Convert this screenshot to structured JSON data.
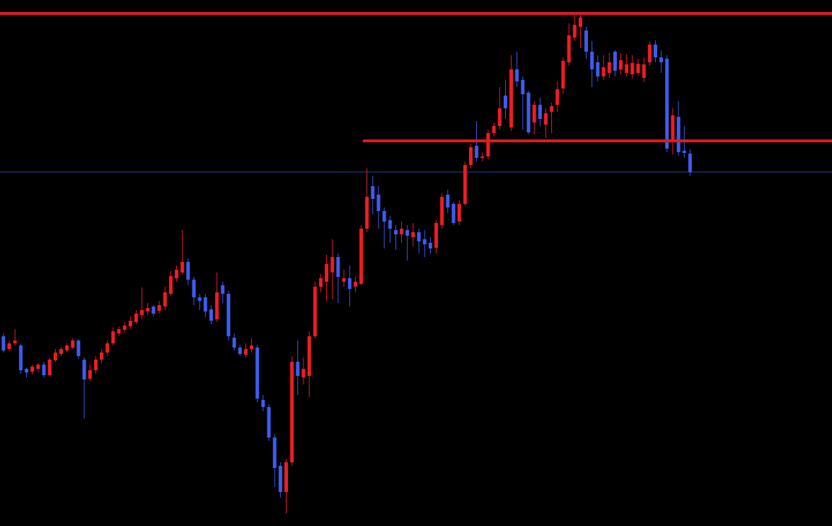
{
  "chart_data": {
    "type": "candlestick",
    "up_color": "#ee1c25",
    "down_color": "#3d5cf0",
    "xlim": [
      -0.6,
      143.6
    ],
    "ylim": [
      0,
      743
    ],
    "open": [
      268,
      250,
      258,
      255,
      222,
      218,
      222,
      228,
      213,
      234,
      243,
      248,
      252,
      262,
      235,
      208,
      220,
      235,
      245,
      258,
      272,
      277,
      282,
      288,
      298,
      303,
      310,
      304,
      310,
      328,
      350,
      358,
      373,
      348,
      323,
      323,
      306,
      292,
      340,
      328,
      266,
      252,
      242,
      250,
      252,
      178,
      168,
      125,
      85,
      48,
      90,
      232,
      210,
      212,
      268,
      338,
      345,
      358,
      380,
      345,
      350,
      338,
      342,
      420,
      480,
      468,
      445,
      432,
      418,
      412,
      418,
      408,
      415,
      405,
      400,
      393,
      425,
      468,
      455,
      430,
      455,
      510,
      537,
      520,
      522,
      555,
      565,
      608,
      563,
      645,
      630,
      612,
      570,
      595,
      567,
      585,
      595,
      618,
      655,
      690,
      705,
      700,
      670,
      655,
      635,
      640,
      670,
      645,
      640,
      638,
      640,
      633,
      655,
      680,
      662,
      660,
      545,
      578,
      530,
      526
    ],
    "high": [
      272,
      262,
      278,
      258,
      224,
      228,
      230,
      232,
      238,
      250,
      253,
      258,
      265,
      264,
      238,
      228,
      240,
      250,
      262,
      280,
      282,
      288,
      296,
      305,
      337,
      315,
      312,
      318,
      338,
      360,
      368,
      418,
      378,
      352,
      328,
      328,
      312,
      358,
      345,
      332,
      272,
      256,
      258,
      265,
      256,
      185,
      172,
      130,
      90,
      95,
      240,
      262,
      238,
      275,
      345,
      356,
      383,
      405,
      385,
      362,
      368,
      352,
      425,
      505,
      495,
      480,
      450,
      438,
      425,
      430,
      425,
      428,
      420,
      418,
      408,
      432,
      470,
      475,
      458,
      460,
      515,
      540,
      572,
      528,
      560,
      570,
      620,
      630,
      665,
      670,
      635,
      615,
      600,
      605,
      590,
      598,
      628,
      662,
      710,
      722,
      723,
      705,
      685,
      665,
      665,
      668,
      672,
      668,
      666,
      665,
      660,
      662,
      685,
      686,
      672,
      665,
      590,
      600,
      565,
      532
    ],
    "low": [
      245,
      247,
      255,
      215,
      210,
      214,
      218,
      210,
      212,
      232,
      240,
      245,
      250,
      236,
      152,
      205,
      215,
      230,
      240,
      255,
      268,
      273,
      278,
      285,
      292,
      298,
      296,
      300,
      305,
      325,
      345,
      355,
      340,
      312,
      305,
      295,
      285,
      288,
      315,
      262,
      248,
      240,
      238,
      245,
      175,
      162,
      120,
      55,
      40,
      18,
      85,
      185,
      200,
      182,
      265,
      330,
      318,
      320,
      315,
      338,
      310,
      330,
      340,
      415,
      440,
      420,
      392,
      400,
      390,
      400,
      375,
      395,
      385,
      380,
      385,
      385,
      420,
      442,
      425,
      425,
      452,
      505,
      515,
      515,
      518,
      550,
      560,
      575,
      558,
      620,
      560,
      553,
      553,
      565,
      548,
      555,
      585,
      610,
      650,
      685,
      675,
      660,
      620,
      628,
      630,
      633,
      635,
      638,
      635,
      632,
      636,
      627,
      650,
      655,
      640,
      528,
      525,
      523,
      520,
      495
    ],
    "close": [
      248,
      258,
      262,
      220,
      217,
      225,
      228,
      213,
      235,
      245,
      250,
      255,
      262,
      240,
      207,
      220,
      235,
      245,
      258,
      275,
      278,
      283,
      290,
      300,
      305,
      308,
      300,
      312,
      330,
      353,
      362,
      373,
      348,
      323,
      318,
      303,
      290,
      330,
      328,
      268,
      252,
      243,
      250,
      255,
      180,
      168,
      125,
      82,
      48,
      90,
      232,
      212,
      222,
      268,
      338,
      350,
      370,
      380,
      352,
      350,
      335,
      345,
      420,
      465,
      462,
      445,
      430,
      420,
      412,
      420,
      410,
      415,
      402,
      398,
      392,
      428,
      465,
      450,
      428,
      455,
      510,
      535,
      520,
      522,
      555,
      565,
      590,
      590,
      645,
      628,
      610,
      556,
      595,
      575,
      583,
      593,
      617,
      657,
      693,
      708,
      718,
      670,
      645,
      635,
      648,
      655,
      643,
      658,
      652,
      654,
      653,
      652,
      680,
      662,
      655,
      533,
      580,
      528,
      527,
      500
    ],
    "levels": [
      {
        "value": 724,
        "color": "#e01a22"
      },
      {
        "value": 544,
        "x0": 62.5,
        "color": "#e01a22"
      }
    ],
    "price_line": {
      "value": 500,
      "color": "#2b3f9c"
    }
  }
}
